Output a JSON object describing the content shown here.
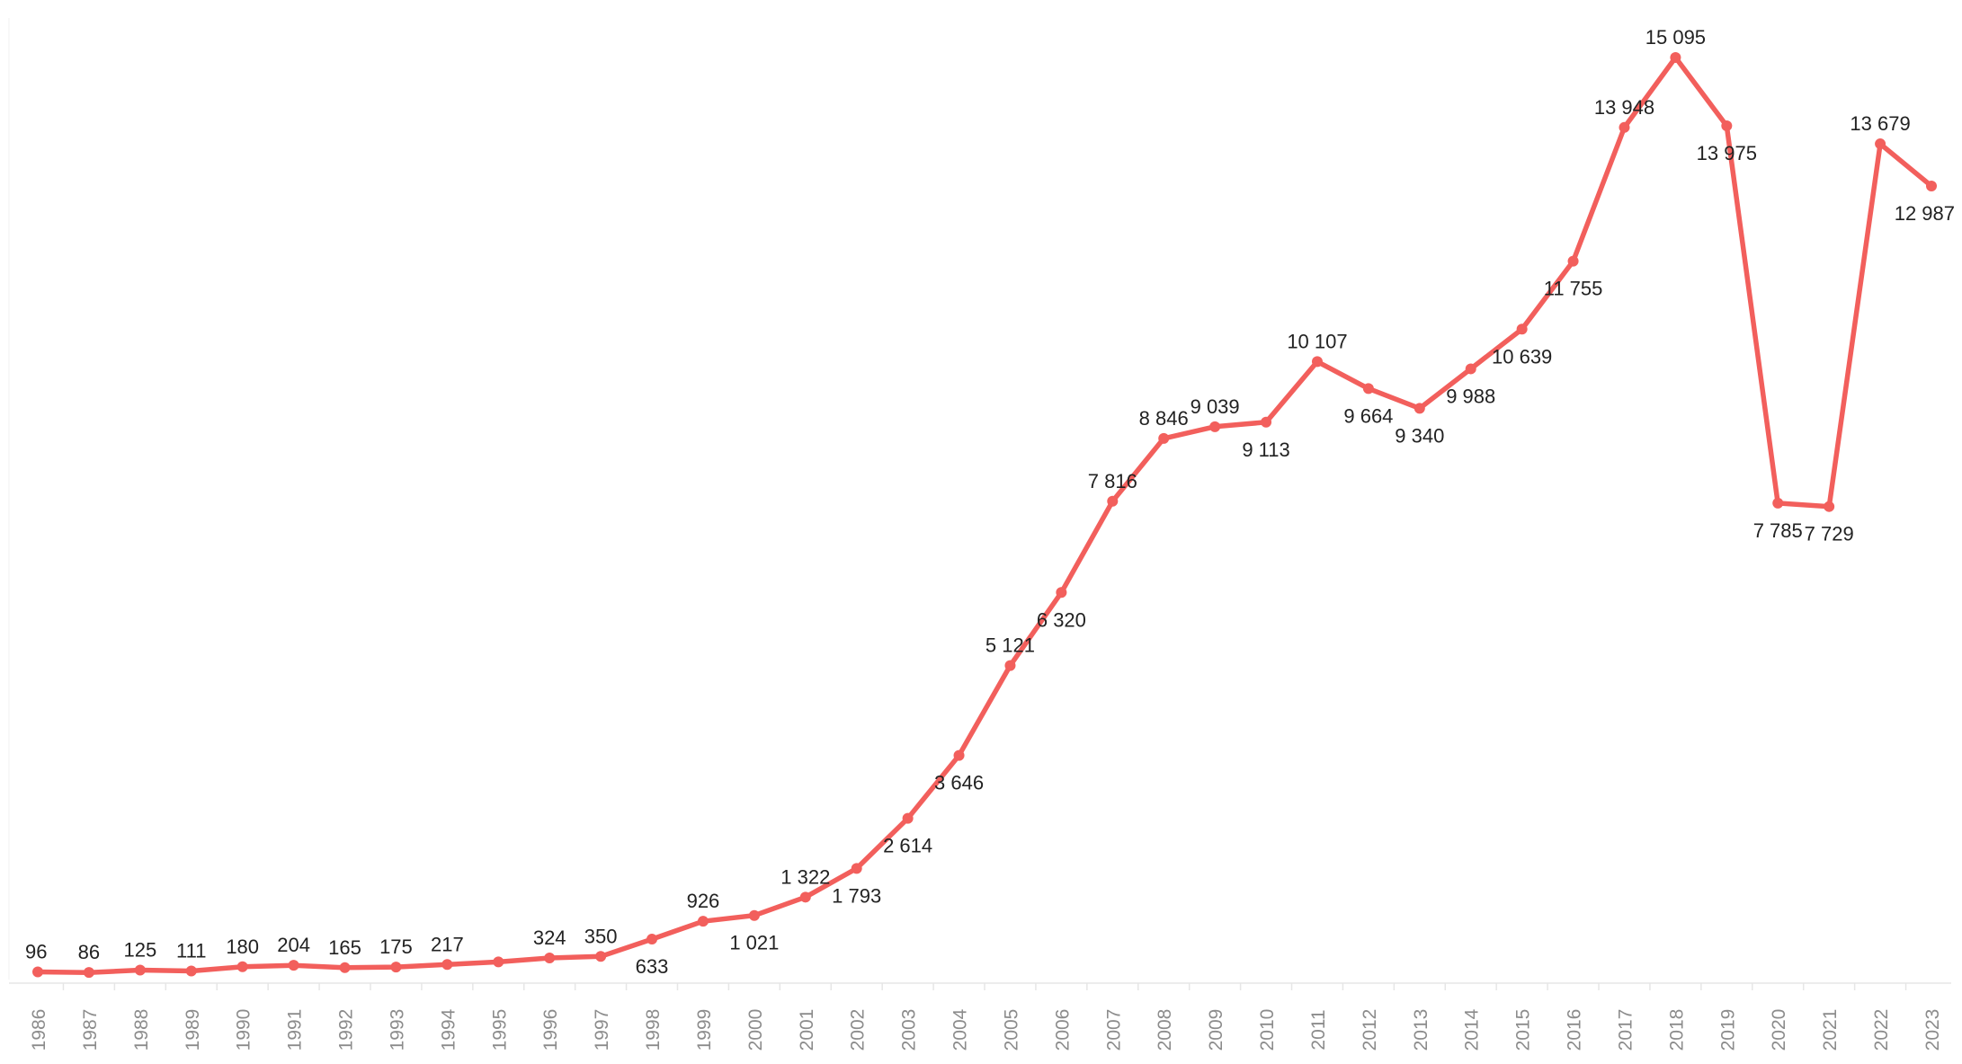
{
  "chart_data": {
    "type": "line",
    "title": "",
    "xlabel": "",
    "ylabel": "",
    "ylim": [
      0,
      15500
    ],
    "grid": false,
    "legend": "none",
    "x": [
      "1986",
      "1987",
      "1988",
      "1989",
      "1990",
      "1991",
      "1992",
      "1993",
      "1994",
      "1995",
      "1996",
      "1997",
      "1998",
      "1999",
      "2000",
      "2001",
      "2002",
      "2003",
      "2004",
      "2005",
      "2006",
      "2007",
      "2008",
      "2009",
      "2010",
      "2011",
      "2012",
      "2013",
      "2014",
      "2015",
      "2016",
      "2017",
      "2018",
      "2019",
      "2020",
      "2021",
      "2022",
      "2023"
    ],
    "series": [
      {
        "values": [
          96,
          86,
          125,
          111,
          180,
          204,
          165,
          175,
          217,
          260,
          324,
          350,
          633,
          926,
          1021,
          1322,
          1793,
          2614,
          3646,
          5121,
          6320,
          7816,
          8846,
          9039,
          9113,
          10107,
          9664,
          9340,
          9988,
          10639,
          11755,
          13948,
          15095,
          13975,
          7785,
          7729,
          13679,
          12987
        ],
        "labels": [
          "96",
          "86",
          "125",
          "111",
          "180",
          "204",
          "165",
          "175",
          "217",
          "",
          "324",
          "350",
          "633",
          "926",
          "1 021",
          "1 322",
          "1 793",
          "2 614",
          "3 646",
          "5 121",
          "6 320",
          "7 816",
          "8 846",
          "9 039",
          "9 113",
          "10 107",
          "9 664",
          "9 340",
          "9 988",
          "10 639",
          "11 755",
          "13 948",
          "15 095",
          "13 975",
          "7 785",
          "7 729",
          "13 679",
          "12 987"
        ],
        "label_pos": [
          "a",
          "a",
          "a",
          "a",
          "a",
          "a",
          "a",
          "a",
          "a",
          "n",
          "a",
          "a",
          "b",
          "a",
          "b",
          "a",
          "b",
          "b",
          "b",
          "a",
          "b",
          "a",
          "a",
          "a",
          "b",
          "a",
          "b",
          "b",
          "b",
          "b",
          "b",
          "a",
          "a",
          "b",
          "b",
          "b",
          "a",
          "b"
        ]
      }
    ],
    "colors": {
      "line": "#f25f5c",
      "tick_text": "#8c8c8c",
      "label_text": "#222222",
      "axis_line": "#e6e6e6"
    }
  }
}
